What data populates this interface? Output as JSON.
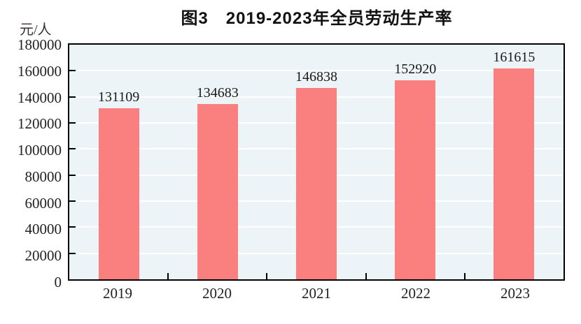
{
  "title": "图3　2019-2023年全员劳动生产率",
  "y_unit": "元/人",
  "chart_data": {
    "type": "bar",
    "title": "图3　2019-2023年全员劳动生产率",
    "categories": [
      "2019",
      "2020",
      "2021",
      "2022",
      "2023"
    ],
    "values": [
      131109,
      134683,
      146838,
      152920,
      161615
    ],
    "value_labels": [
      "131109",
      "134683",
      "146838",
      "152920",
      "161615"
    ],
    "xlabel": "",
    "ylabel": "元/人",
    "ylim": [
      0,
      180000
    ],
    "ytick_step": 20000,
    "ytick_labels": [
      "0",
      "20000",
      "40000",
      "60000",
      "80000",
      "100000",
      "120000",
      "140000",
      "160000",
      "180000"
    ],
    "grid": "on",
    "legend": "none",
    "colors": {
      "bar": "#fa8080",
      "plot_background": "#edf4f7",
      "gridline": "#ffffff",
      "axis": "#000000",
      "title_text": "#111111",
      "label_text": "#222222"
    }
  }
}
